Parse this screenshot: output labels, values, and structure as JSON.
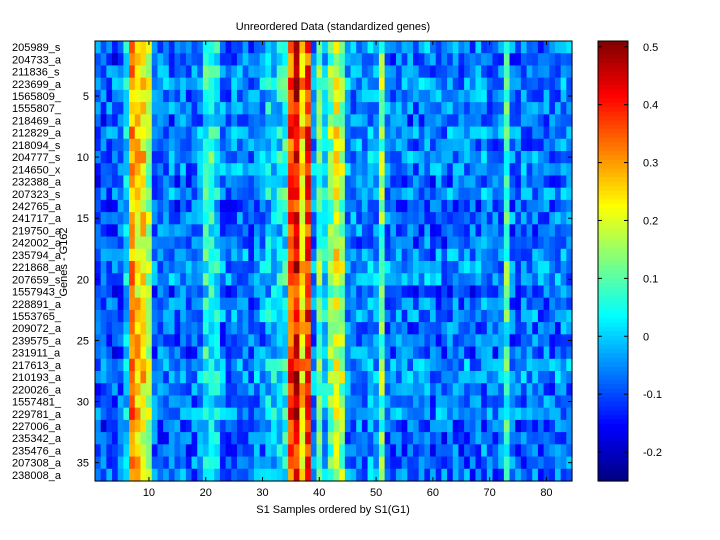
{
  "chart_data": {
    "type": "heatmap",
    "title": "Unreordered Data (standardized genes)",
    "xlabel": "S1 Samples ordered by S1(G1)",
    "ylabel": "Genes - G162",
    "n_columns": 84,
    "xlim": [
      0.5,
      84.5
    ],
    "xticks": [
      10,
      20,
      30,
      40,
      50,
      60,
      70,
      80
    ],
    "yticks": [
      5,
      10,
      15,
      20,
      25,
      30,
      35
    ],
    "row_labels": [
      "205989_s",
      "204733_a",
      "211836_s",
      "223699_a",
      "1565809_",
      "1555807_",
      "218469_a",
      "212829_a",
      "218094_s",
      "204777_s",
      "214650_x",
      "232388_a",
      "207323_s",
      "242765_a",
      "241717_a",
      "219750_a",
      "242002_a",
      "235794_a",
      "221868_a",
      "207659_s",
      "1557943_",
      "228891_a",
      "1553765_",
      "209072_a",
      "239575_a",
      "231911_a",
      "217613_a",
      "210193_a",
      "220026_a",
      "1557481_",
      "229781_a",
      "227006_a",
      "235342_a",
      "235476_a",
      "207308_a",
      "238008_a"
    ],
    "column_mean_profile": [
      -0.1,
      -0.1,
      -0.09,
      -0.1,
      -0.08,
      0.0,
      0.3,
      0.26,
      0.24,
      0.15,
      -0.08,
      -0.07,
      -0.08,
      -0.07,
      -0.08,
      -0.06,
      -0.08,
      -0.07,
      -0.06,
      0.05,
      0.06,
      0.02,
      -0.07,
      -0.08,
      -0.07,
      -0.06,
      -0.07,
      -0.08,
      -0.06,
      -0.05,
      0.0,
      0.0,
      0.01,
      0.05,
      0.35,
      0.42,
      0.25,
      0.38,
      -0.05,
      0.1,
      0.0,
      0.12,
      0.2,
      0.15,
      -0.05,
      -0.06,
      -0.05,
      -0.06,
      -0.04,
      -0.05,
      0.12,
      -0.07,
      -0.08,
      -0.07,
      -0.08,
      -0.07,
      -0.08,
      -0.07,
      -0.06,
      -0.08,
      -0.07,
      -0.08,
      -0.07,
      -0.06,
      -0.08,
      -0.07,
      -0.08,
      -0.07,
      -0.06,
      -0.07,
      -0.08,
      -0.07,
      0.08,
      -0.07,
      -0.08,
      -0.07,
      -0.08,
      -0.07,
      -0.08,
      -0.07,
      -0.08,
      -0.07,
      -0.06,
      -0.07
    ],
    "noise_amplitude": 0.08,
    "colorbar": {
      "min": -0.25,
      "max": 0.51,
      "ticks": [
        -0.2,
        -0.1,
        0,
        0.1,
        0.2,
        0.3,
        0.4,
        0.5
      ],
      "tick_labels": [
        "-0.2",
        "-0.1",
        "0",
        "0.1",
        "0.2",
        "0.3",
        "0.4",
        "0.5"
      ],
      "colormap": "jet"
    }
  }
}
